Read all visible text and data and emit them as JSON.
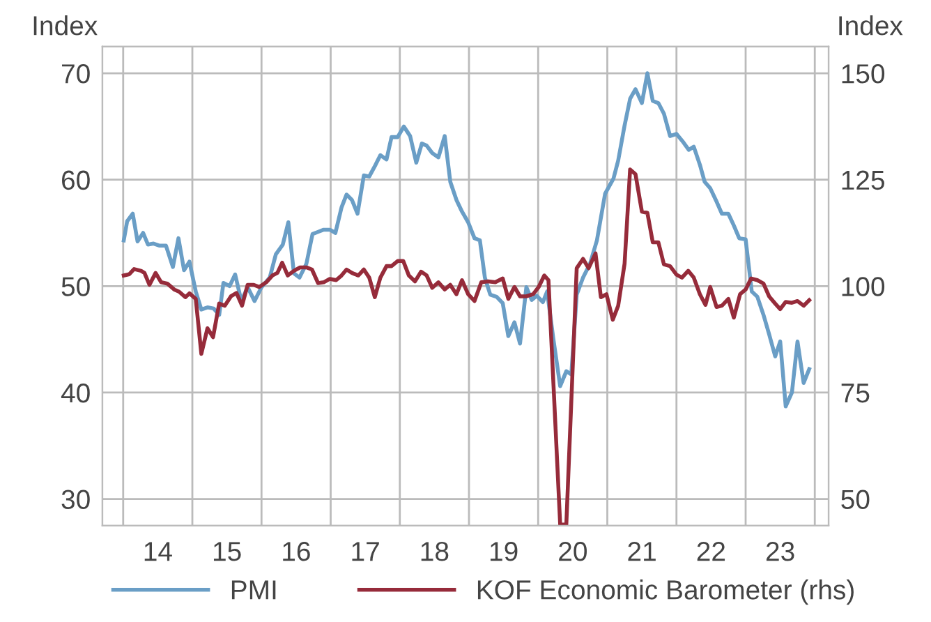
{
  "chart_data": {
    "type": "line",
    "ylabel": "Index",
    "y2label": "Index",
    "xlim": [
      "2013-09-13",
      "2024-03-13"
    ],
    "xticks": [
      {
        "value": "2014-01-01",
        "label": null
      },
      {
        "value": "2015-01-01",
        "label": null
      },
      {
        "value": "2016-01-01",
        "label": null
      },
      {
        "value": "2017-01-01",
        "label": null
      },
      {
        "value": "2018-01-01",
        "label": null
      },
      {
        "value": "2019-01-01",
        "label": null
      },
      {
        "value": "2020-01-01",
        "label": null
      },
      {
        "value": "2021-01-01",
        "label": null
      },
      {
        "value": "2022-01-01",
        "label": null
      },
      {
        "value": "2023-01-01",
        "label": null
      },
      {
        "value": "2024-01-01",
        "label": null
      },
      {
        "value": "2014-07-01",
        "label": "14"
      },
      {
        "value": "2015-07-01",
        "label": "15"
      },
      {
        "value": "2016-07-01",
        "label": "16"
      },
      {
        "value": "2017-07-01",
        "label": "17"
      },
      {
        "value": "2018-07-01",
        "label": "18"
      },
      {
        "value": "2019-07-01",
        "label": "19"
      },
      {
        "value": "2020-07-01",
        "label": "20"
      },
      {
        "value": "2021-07-01",
        "label": "21"
      },
      {
        "value": "2022-07-01",
        "label": "22"
      },
      {
        "value": "2023-07-01",
        "label": "23"
      }
    ],
    "ylim": [
      27.5,
      72.5
    ],
    "yticks": [
      30,
      40,
      50,
      60,
      70
    ],
    "y2lim": [
      43.75,
      156.25
    ],
    "y2ticks": [
      50,
      75,
      100,
      125,
      150
    ],
    "grid": true,
    "legend": "bottom",
    "marker": "none",
    "line_style": "solid",
    "series": [
      {
        "name": "PMI",
        "color": "#6a9ec6",
        "x": [
          "2014-01-04",
          "2014-01-22",
          "2014-02-21",
          "2014-03-16",
          "2014-04-15",
          "2014-05-10",
          "2014-06-09",
          "2014-07-11",
          "2014-08-14",
          "2014-09-20",
          "2014-10-19",
          "2014-11-18",
          "2014-12-16",
          "2015-01-19",
          "2015-02-18",
          "2015-03-20",
          "2015-04-22",
          "2015-05-21",
          "2015-06-13",
          "2015-07-15",
          "2015-08-14",
          "2015-09-16",
          "2015-10-19",
          "2015-11-25",
          "2016-01-01",
          "2016-02-14",
          "2016-03-16",
          "2016-04-22",
          "2016-05-21",
          "2016-06-20",
          "2016-07-19",
          "2016-08-25",
          "2016-09-27",
          "2016-10-26",
          "2016-11-25",
          "2016-12-27",
          "2017-01-26",
          "2017-02-28",
          "2017-03-24",
          "2017-04-22",
          "2017-05-21",
          "2017-06-24",
          "2017-07-22",
          "2017-08-25",
          "2017-09-20",
          "2017-10-22",
          "2017-11-18",
          "2017-12-20",
          "2018-01-22",
          "2018-02-25",
          "2018-03-27",
          "2018-04-26",
          "2018-05-21",
          "2018-06-20",
          "2018-07-22",
          "2018-08-25",
          "2018-09-24",
          "2018-10-26",
          "2018-11-25",
          "2018-12-27",
          "2019-01-30",
          "2019-02-28",
          "2019-03-24",
          "2019-04-22",
          "2019-05-25",
          "2019-06-27",
          "2019-07-26",
          "2019-08-28",
          "2019-09-27",
          "2019-10-30",
          "2019-11-28",
          "2019-12-24",
          "2020-01-26",
          "2020-02-18",
          "2020-03-20",
          "2020-04-26",
          "2020-05-28",
          "2020-06-24",
          "2020-07-22",
          "2020-08-25",
          "2020-10-01",
          "2020-11-07",
          "2020-12-20",
          "2021-02-03",
          "2021-02-28",
          "2021-04-01",
          "2021-04-30",
          "2021-05-28",
          "2021-07-01",
          "2021-07-30",
          "2021-08-28",
          "2021-09-27",
          "2021-10-26",
          "2021-11-28",
          "2022-01-01",
          "2022-02-03",
          "2022-03-05",
          "2022-04-01",
          "2022-05-03",
          "2022-05-28",
          "2022-06-27",
          "2022-07-26",
          "2022-08-28",
          "2022-10-01",
          "2022-10-30",
          "2022-11-28",
          "2023-01-01",
          "2023-02-03",
          "2023-03-02",
          "2023-04-04",
          "2023-05-03",
          "2023-06-05",
          "2023-07-01",
          "2023-07-30",
          "2023-09-02",
          "2023-10-01",
          "2023-11-03",
          "2023-12-02"
        ],
        "values": [
          54.3,
          56.1,
          56.8,
          54.2,
          55.0,
          53.9,
          54.0,
          53.8,
          53.8,
          51.8,
          54.5,
          51.5,
          52.3,
          49.5,
          47.8,
          48.0,
          47.9,
          47.3,
          50.3,
          50.0,
          51.1,
          48.6,
          49.9,
          48.6,
          49.9,
          50.8,
          53.0,
          53.9,
          56.0,
          51.2,
          50.8,
          52.1,
          54.9,
          55.1,
          55.3,
          55.3,
          55.0,
          57.4,
          58.6,
          58.1,
          56.8,
          60.4,
          60.3,
          61.4,
          62.3,
          61.9,
          64.0,
          64.0,
          65.0,
          64.1,
          61.6,
          63.4,
          63.2,
          62.5,
          62.1,
          64.1,
          59.8,
          58.1,
          57.0,
          56.0,
          54.5,
          54.3,
          50.8,
          49.2,
          49.0,
          48.4,
          45.3,
          46.6,
          44.6,
          49.9,
          48.7,
          49.1,
          48.5,
          49.5,
          45.1,
          40.6,
          42.0,
          41.7,
          49.2,
          50.8,
          52.1,
          54.3,
          58.7,
          60.1,
          61.8,
          65.1,
          67.6,
          68.5,
          67.2,
          70.0,
          67.4,
          67.2,
          66.2,
          64.1,
          64.3,
          63.6,
          62.8,
          63.1,
          61.4,
          59.8,
          59.2,
          58.1,
          56.8,
          56.8,
          55.7,
          54.5,
          54.4,
          49.5,
          49.0,
          47.3,
          45.5,
          43.4,
          44.8,
          38.7,
          40.0,
          44.8,
          40.9,
          42.2
        ]
      },
      {
        "name": "KOF Economic Barometer (rhs)",
        "color": "#962b3a",
        "axis": "y2",
        "x": [
          "2014-01-04",
          "2014-02-03",
          "2014-02-28",
          "2014-04-04",
          "2014-04-22",
          "2014-05-18",
          "2014-06-20",
          "2014-07-19",
          "2014-08-21",
          "2014-09-27",
          "2014-10-22",
          "2014-11-25",
          "2014-12-16",
          "2015-01-19",
          "2015-02-18",
          "2015-03-20",
          "2015-04-19",
          "2015-05-21",
          "2015-06-20",
          "2015-07-22",
          "2015-08-21",
          "2015-09-20",
          "2015-10-19",
          "2015-11-21",
          "2015-12-20",
          "2016-01-26",
          "2016-02-28",
          "2016-03-24",
          "2016-04-19",
          "2016-05-18",
          "2016-06-20",
          "2016-07-22",
          "2016-08-25",
          "2016-09-24",
          "2016-10-26",
          "2016-11-25",
          "2016-12-27",
          "2017-01-30",
          "2017-02-28",
          "2017-03-24",
          "2017-04-22",
          "2017-05-25",
          "2017-06-24",
          "2017-07-22",
          "2017-08-21",
          "2017-09-20",
          "2017-10-22",
          "2017-11-18",
          "2017-12-20",
          "2018-01-19",
          "2018-02-18",
          "2018-03-20",
          "2018-04-22",
          "2018-05-21",
          "2018-06-20",
          "2018-07-22",
          "2018-08-25",
          "2018-09-24",
          "2018-10-26",
          "2018-11-25",
          "2018-12-27",
          "2019-01-30",
          "2019-03-05",
          "2019-04-11",
          "2019-05-18",
          "2019-06-27",
          "2019-07-26",
          "2019-08-28",
          "2019-09-27",
          "2019-10-30",
          "2019-12-05",
          "2020-01-04",
          "2020-02-03",
          "2020-02-25",
          "2020-04-26",
          "2020-05-28",
          "2020-07-22",
          "2020-08-25",
          "2020-09-24",
          "2020-10-30",
          "2020-11-28",
          "2020-12-27",
          "2021-01-30",
          "2021-02-28",
          "2021-04-01",
          "2021-04-30",
          "2021-05-28",
          "2021-07-01",
          "2021-07-30",
          "2021-08-28",
          "2021-09-27",
          "2021-10-26",
          "2021-11-28",
          "2022-01-01",
          "2022-01-30",
          "2022-03-02",
          "2022-04-01",
          "2022-05-03",
          "2022-06-02",
          "2022-06-27",
          "2022-07-30",
          "2022-08-28",
          "2022-10-01",
          "2022-10-30",
          "2022-12-02",
          "2023-01-01",
          "2023-01-30",
          "2023-03-02",
          "2023-04-04",
          "2023-05-03",
          "2023-06-05",
          "2023-07-01",
          "2023-07-30",
          "2023-09-02",
          "2023-10-01",
          "2023-11-03",
          "2023-12-02"
        ],
        "values": [
          102.5,
          102.8,
          104.0,
          103.6,
          103.1,
          100.3,
          103.1,
          100.9,
          100.6,
          99.2,
          98.7,
          97.4,
          98.3,
          97.0,
          84.1,
          90.1,
          88.0,
          95.9,
          95.4,
          97.6,
          98.4,
          95.4,
          100.3,
          100.3,
          99.8,
          100.9,
          102.5,
          103.1,
          105.5,
          102.5,
          103.6,
          104.4,
          104.4,
          103.9,
          100.7,
          100.9,
          101.7,
          101.4,
          102.5,
          103.9,
          103.1,
          102.5,
          103.9,
          102.0,
          97.4,
          102.0,
          104.7,
          104.7,
          105.9,
          105.9,
          102.5,
          101.1,
          103.4,
          102.5,
          99.6,
          100.9,
          99.2,
          100.3,
          98.1,
          101.4,
          98.1,
          96.5,
          100.9,
          101.1,
          100.9,
          101.8,
          97.0,
          99.8,
          97.6,
          97.6,
          98.1,
          99.8,
          102.5,
          101.4,
          44,
          44,
          104.2,
          106.4,
          104.2,
          107.7,
          97.4,
          98.1,
          92.1,
          95.4,
          105.3,
          127.4,
          126.3,
          117.5,
          117.2,
          110.3,
          110.3,
          105.1,
          104.7,
          102.7,
          102.0,
          103.6,
          102.0,
          98.1,
          95.6,
          99.8,
          95.1,
          95.4,
          97.0,
          92.6,
          98.1,
          99.2,
          101.8,
          101.4,
          100.6,
          97.6,
          95.9,
          94.6,
          96.3,
          96.1,
          96.5,
          95.4,
          96.7
        ]
      }
    ]
  }
}
